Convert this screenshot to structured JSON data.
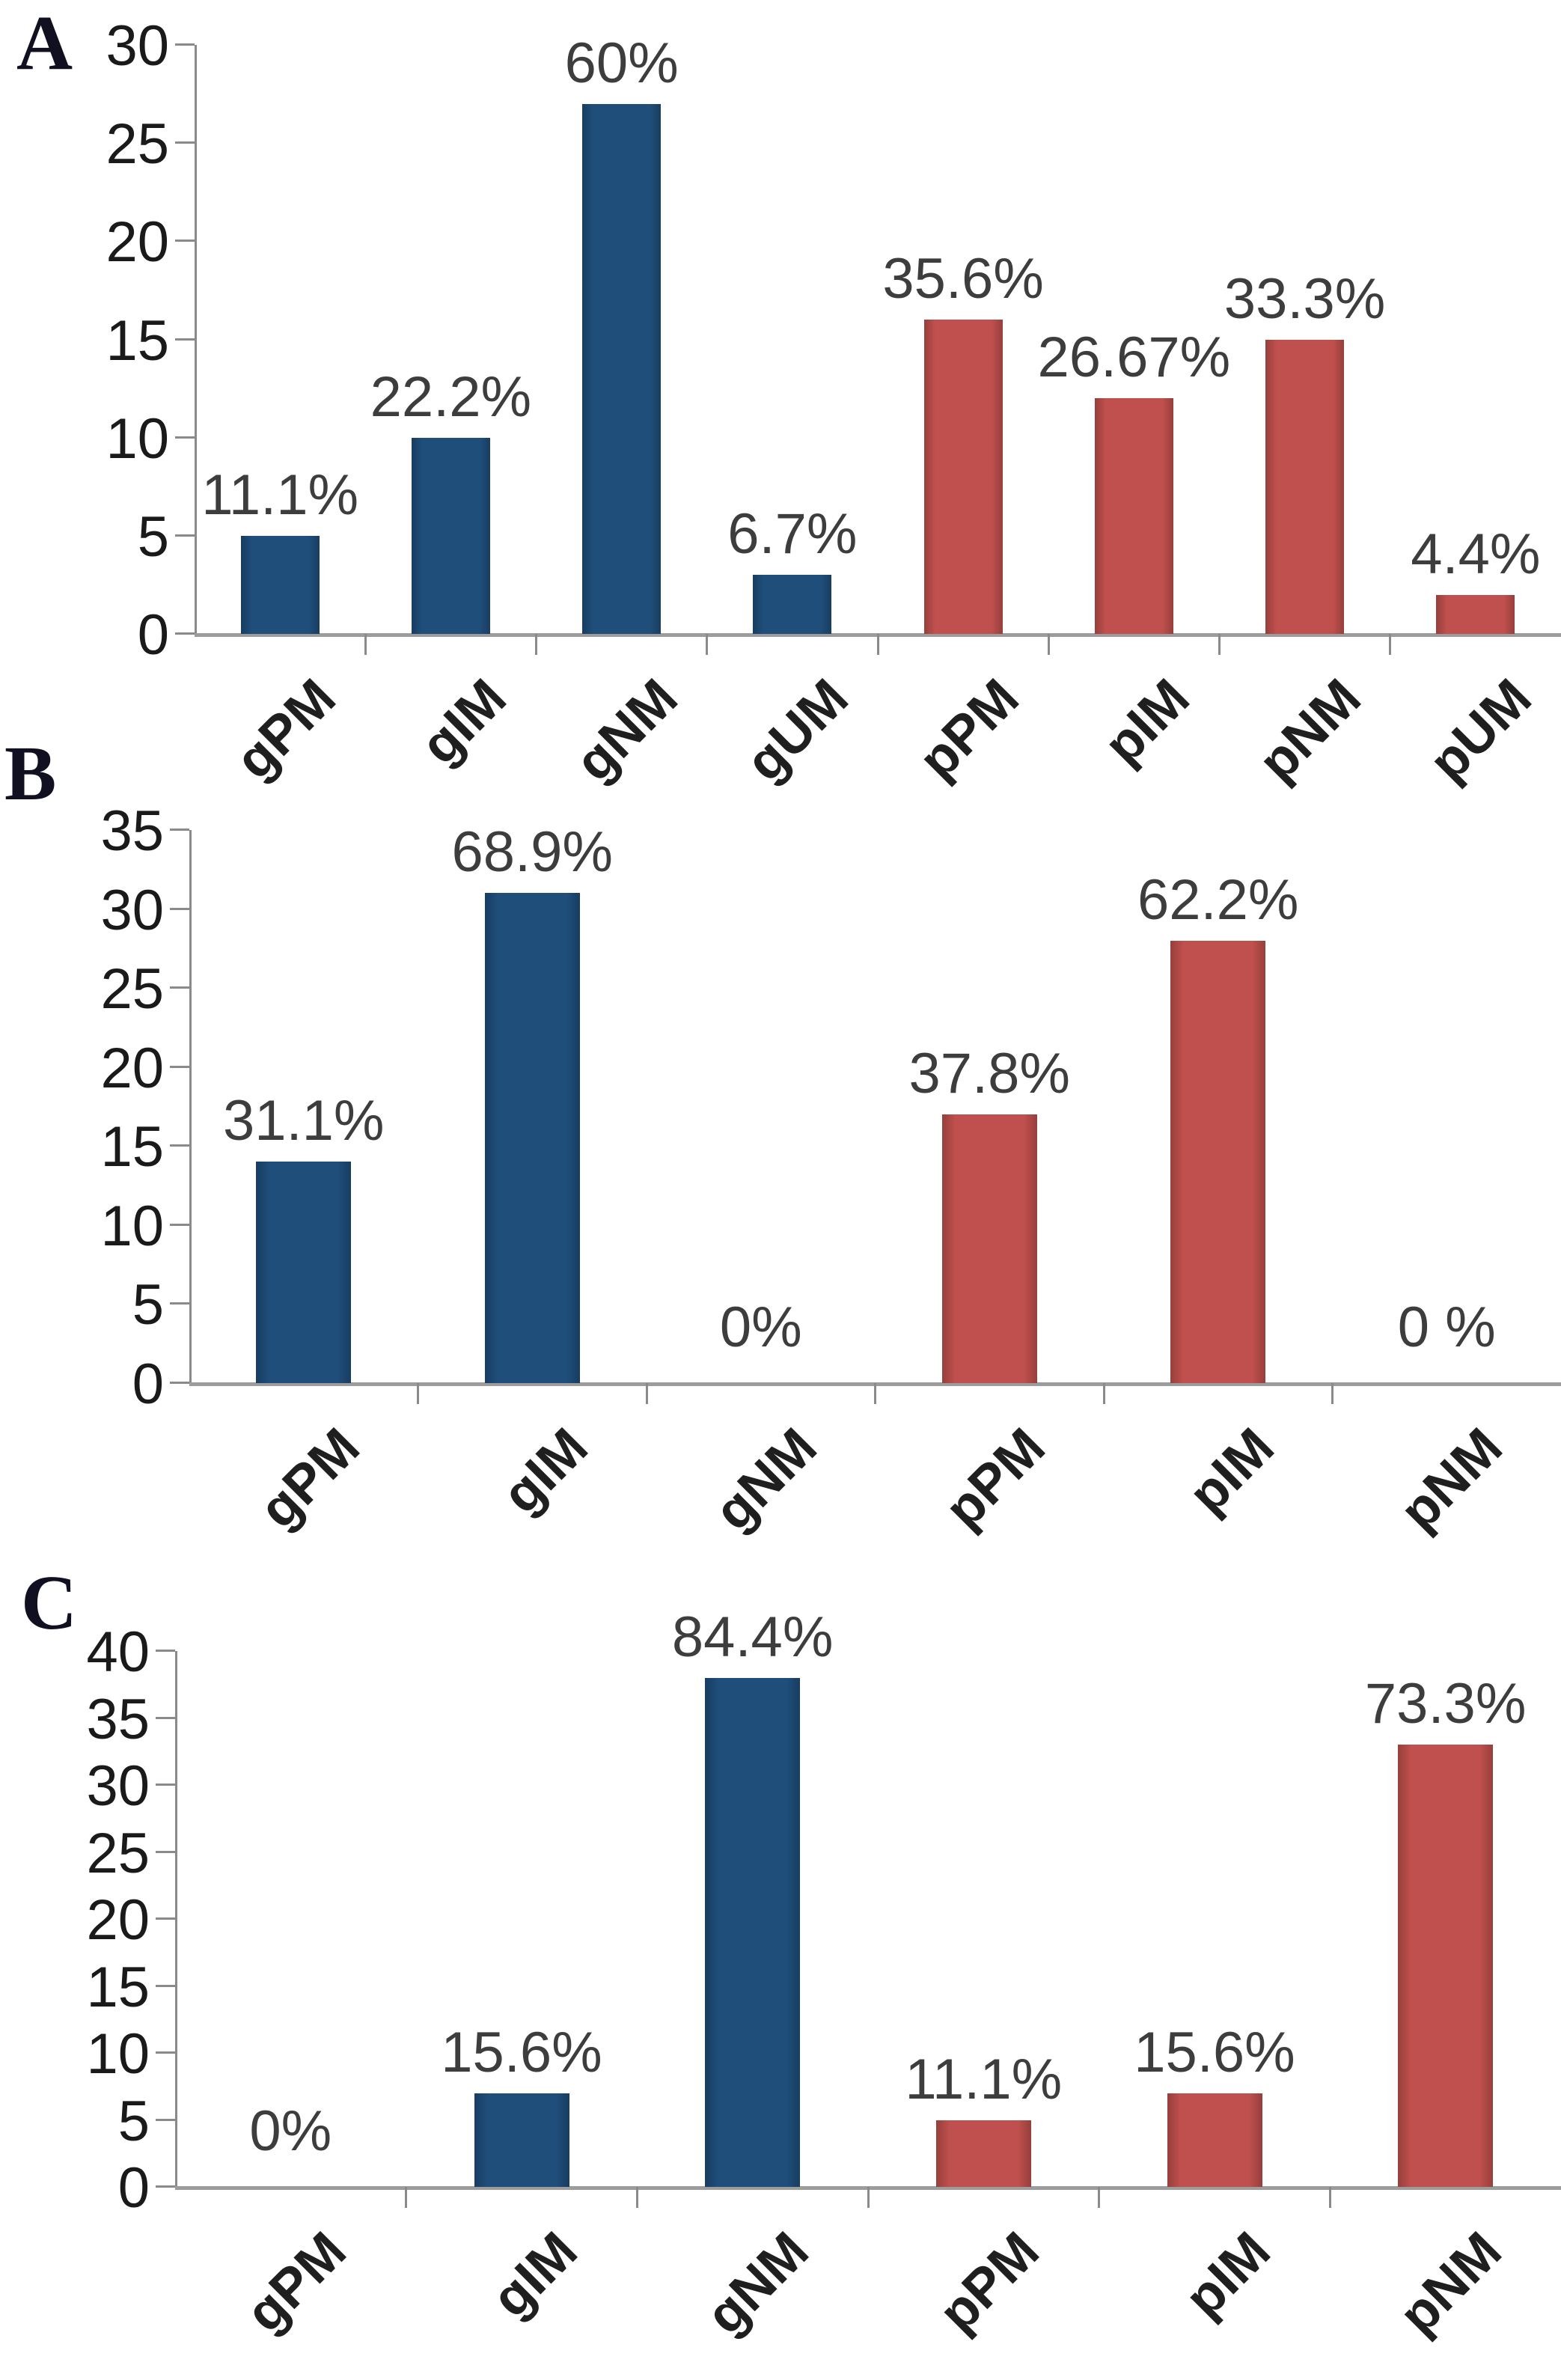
{
  "palette": {
    "series_g": "#1F4E7B",
    "series_p": "#C0504D",
    "axis": "#8A8A8A",
    "baseline": "#9C9C9C",
    "tick_text": "#1A1A1A",
    "value_text": "#3D3D3D",
    "category_text": "#1F1F1F",
    "panel_letter": "#101020",
    "background": "#FFFFFF"
  },
  "chart_data": [
    {
      "type": "bar",
      "title": "A",
      "xlabel": "",
      "ylabel": "",
      "ylim": [
        0,
        30
      ],
      "ytick_step": 5,
      "grid": false,
      "legend": null,
      "categories": [
        "gPM",
        "gIM",
        "gNM",
        "gUM",
        "pPM",
        "pIM",
        "pNM",
        "pUM"
      ],
      "values": [
        5,
        10,
        27,
        3,
        16,
        12,
        15,
        2
      ],
      "value_labels": [
        "11.1%",
        "22.2%",
        "60%",
        "6.7%",
        "35.6%",
        "26.67%",
        "33.3%",
        "4.4%"
      ],
      "bar_colors": [
        "#1F4E7B",
        "#1F4E7B",
        "#1F4E7B",
        "#1F4E7B",
        "#C0504D",
        "#C0504D",
        "#C0504D",
        "#C0504D"
      ]
    },
    {
      "type": "bar",
      "title": "B",
      "xlabel": "",
      "ylabel": "",
      "ylim": [
        0,
        35
      ],
      "ytick_step": 5,
      "grid": false,
      "legend": null,
      "categories": [
        "gPM",
        "gIM",
        "gNM",
        "pPM",
        "pIM",
        "pNM"
      ],
      "values": [
        14,
        31,
        0,
        17,
        28,
        0
      ],
      "value_labels": [
        "31.1%",
        "68.9%",
        "0%",
        "37.8%",
        "62.2%",
        "0 %"
      ],
      "bar_colors": [
        "#1F4E7B",
        "#1F4E7B",
        "#1F4E7B",
        "#C0504D",
        "#C0504D",
        "#C0504D"
      ]
    },
    {
      "type": "bar",
      "title": "C",
      "xlabel": "",
      "ylabel": "",
      "ylim": [
        0,
        40
      ],
      "ytick_step": 5,
      "grid": false,
      "legend": null,
      "categories": [
        "gPM",
        "gIM",
        "gNM",
        "pPM",
        "pIM",
        "pNM"
      ],
      "values": [
        0,
        7,
        38,
        5,
        7,
        33
      ],
      "value_labels": [
        "0%",
        "15.6%",
        "84.4%",
        "11.1%",
        "15.6%",
        "73.3%"
      ],
      "bar_colors": [
        "#1F4E7B",
        "#1F4E7B",
        "#1F4E7B",
        "#C0504D",
        "#C0504D",
        "#C0504D"
      ]
    }
  ]
}
